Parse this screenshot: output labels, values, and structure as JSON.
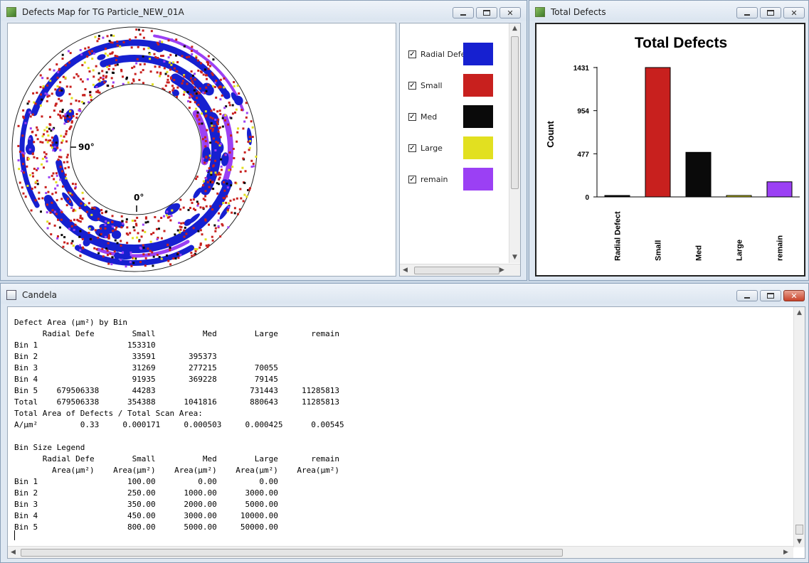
{
  "map_window": {
    "title": "Defects Map for TG Particle_NEW_01A",
    "angle_90": "90°",
    "angle_0": "0°",
    "legend": [
      {
        "label": "Radial Defe",
        "color": "#1620d0",
        "checked": true
      },
      {
        "label": "Small",
        "color": "#c8201e",
        "checked": true
      },
      {
        "label": "Med",
        "color": "#0a0a0a",
        "checked": true
      },
      {
        "label": "Large",
        "color": "#e2e020",
        "checked": true
      },
      {
        "label": "remain",
        "color": "#9b40f4",
        "checked": true
      }
    ]
  },
  "chart_window": {
    "title": "Total Defects"
  },
  "chart_data": {
    "type": "bar",
    "title": "Total Defects",
    "ylabel": "Count",
    "xlabel": "",
    "categories": [
      "Radial Defect",
      "Small",
      "Med",
      "Large",
      "remain"
    ],
    "values": [
      8,
      1431,
      493,
      12,
      167
    ],
    "colors": [
      "#0a0a0a",
      "#c8201e",
      "#0a0a0a",
      "#e2e020",
      "#9b40f4"
    ],
    "yticks": [
      "1431",
      "954",
      "477",
      "0"
    ],
    "ylim": [
      0,
      1431
    ],
    "grid": false
  },
  "candela_window": {
    "title": "Candela",
    "report_lines": [
      "Defect Area (µm²) by Bin",
      "      Radial Defe        Small          Med        Large       remain",
      "Bin 1                   153310",
      "Bin 2                    33591       395373",
      "Bin 3                    31269       277215        70055",
      "Bin 4                    91935       369228        79145",
      "Bin 5    679506338       44283                    731443     11285813",
      "Total    679506338      354388      1041816       880643     11285813",
      "Total Area of Defects / Total Scan Area:",
      "A/µm²         0.33     0.000171     0.000503     0.000425      0.00545",
      "",
      "Bin Size Legend",
      "      Radial Defe        Small          Med        Large       remain",
      "        Area(µm²)    Area(µm²)    Area(µm²)    Area(µm²)    Area(µm²)",
      "Bin 1                   100.00         0.00         0.00",
      "Bin 2                   250.00      1000.00      3000.00",
      "Bin 3                   350.00      2000.00      5000.00",
      "Bin 4                   450.00      3000.00     10000.00",
      "Bin 5                   800.00      5000.00     50000.00"
    ]
  }
}
